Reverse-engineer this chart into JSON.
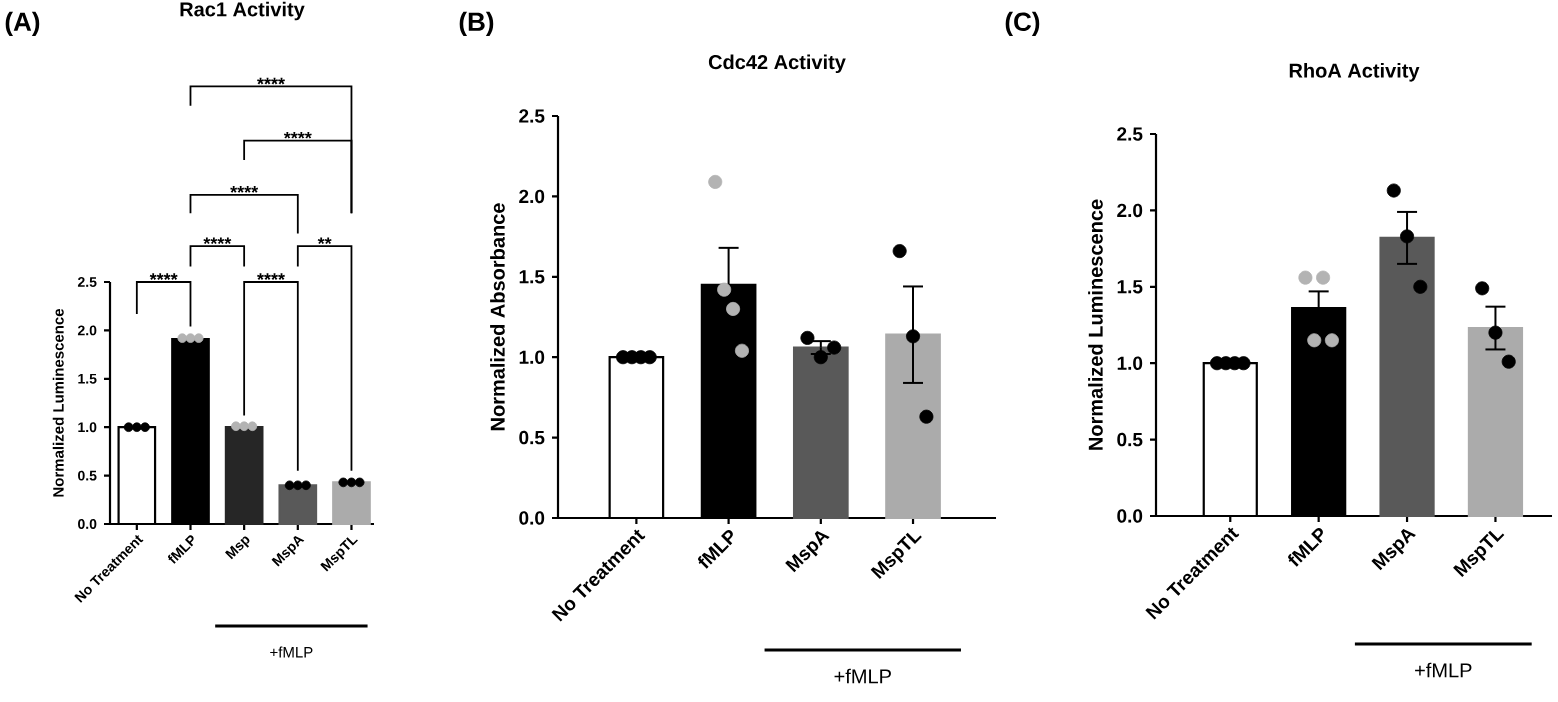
{
  "chart_data": [
    {
      "type": "bar",
      "title": "Rac1 Activity",
      "ylabel": "Normalized Luminescence",
      "categories": [
        "No Treatment",
        "fMLP",
        "Msp",
        "MspA",
        "MspTL"
      ],
      "ylim": [
        0,
        2.5
      ],
      "yticks": [
        {
          "value": 0,
          "label": "0.0"
        },
        0.5,
        {
          "value": 1,
          "label": "1.0"
        },
        1.5,
        {
          "value": 2,
          "label": "2.0"
        },
        2.5
      ],
      "annotations": [
        "(A)",
        "****",
        "****",
        "****",
        "**",
        "****",
        "****",
        "****",
        "+fMLP"
      ],
      "series": [
        {
          "type": "bar",
          "values": [
            1.0,
            1.91,
            1.0,
            0.4,
            0.43
          ],
          "colors": [
            "#ffffff",
            "#000000",
            "#262626",
            "#595959",
            "#ababab"
          ]
        },
        {
          "type": "scatter",
          "marker": "circle",
          "color": "#000000",
          "x": [
            "No Treatment",
            "No Treatment",
            "No Treatment",
            "MspA",
            "MspA",
            "MspA",
            "MspTL",
            "MspTL",
            "MspTL"
          ],
          "values": [
            1.0,
            1.0,
            1.0,
            0.4,
            0.4,
            0.4,
            0.43,
            0.43,
            0.43
          ]
        },
        {
          "type": "scatter",
          "marker": "circle",
          "color": "#b3b3b3",
          "x": [
            "fMLP",
            "fMLP",
            "fMLP",
            "Msp",
            "Msp",
            "Msp"
          ],
          "values": [
            1.92,
            1.92,
            1.92,
            1.01,
            1.01,
            1.01
          ]
        }
      ]
    },
    {
      "type": "bar",
      "title": "Cdc42 Activity",
      "ylabel": "Normalized Absorbance",
      "categories": [
        "No Treatment",
        "fMLP",
        "MspA",
        "MspTL"
      ],
      "ylim": [
        0,
        2.5
      ],
      "yticks": [
        {
          "value": 0,
          "label": "0.0"
        },
        0.5,
        {
          "value": 1,
          "label": "1.0"
        },
        1.5,
        {
          "value": 2,
          "label": "2.0"
        },
        2.5
      ],
      "annotations": [
        "(B)",
        "+fMLP"
      ],
      "series": [
        {
          "type": "bar",
          "values": [
            1.0,
            1.45,
            1.06,
            1.14
          ],
          "errors": [
            null,
            0.23,
            0.04,
            0.3
          ],
          "colors": [
            "#ffffff",
            "#000000",
            "#595959",
            "#ababab"
          ]
        },
        {
          "type": "scatter",
          "marker": "circle",
          "color": "#000000",
          "x": [
            "No Treatment",
            "No Treatment",
            "No Treatment",
            "No Treatment",
            "MspA",
            "MspA",
            "MspA",
            "MspTL",
            "MspTL",
            "MspTL"
          ],
          "values": [
            1.0,
            1.0,
            1.0,
            1.0,
            1.12,
            1.0,
            1.06,
            1.66,
            1.13,
            0.63
          ]
        },
        {
          "type": "scatter",
          "marker": "circle",
          "color": "#b3b3b3",
          "x": [
            "fMLP",
            "fMLP",
            "fMLP",
            "fMLP"
          ],
          "values": [
            2.09,
            1.42,
            1.3,
            1.04
          ]
        }
      ]
    },
    {
      "type": "bar",
      "title": "RhoA Activity",
      "ylabel": "Normalized Luminescence",
      "categories": [
        "No Treatment",
        "fMLP",
        "MspA",
        "MspTL"
      ],
      "ylim": [
        0,
        2.5
      ],
      "yticks": [
        {
          "value": 0,
          "label": "0.0"
        },
        0.5,
        {
          "value": 1,
          "label": "1.0"
        },
        1.5,
        {
          "value": 2,
          "label": "2.0"
        },
        2.5
      ],
      "annotations": [
        "(C)",
        "+fMLP"
      ],
      "series": [
        {
          "type": "bar",
          "values": [
            1.0,
            1.36,
            1.82,
            1.23
          ],
          "errors": [
            null,
            0.11,
            0.17,
            0.14
          ],
          "colors": [
            "#ffffff",
            "#000000",
            "#595959",
            "#ababab"
          ]
        },
        {
          "type": "scatter",
          "marker": "circle",
          "color": "#000000",
          "x": [
            "No Treatment",
            "No Treatment",
            "No Treatment",
            "No Treatment",
            "MspA",
            "MspA",
            "MspA",
            "MspTL",
            "MspTL",
            "MspTL"
          ],
          "values": [
            1.0,
            1.0,
            1.0,
            1.0,
            2.13,
            1.83,
            1.5,
            1.49,
            1.2,
            1.01
          ]
        },
        {
          "type": "scatter",
          "marker": "circle",
          "color": "#b3b3b3",
          "x": [
            "fMLP",
            "fMLP",
            "fMLP",
            "fMLP"
          ],
          "values": [
            1.56,
            1.15,
            1.56,
            1.15
          ]
        }
      ]
    }
  ]
}
